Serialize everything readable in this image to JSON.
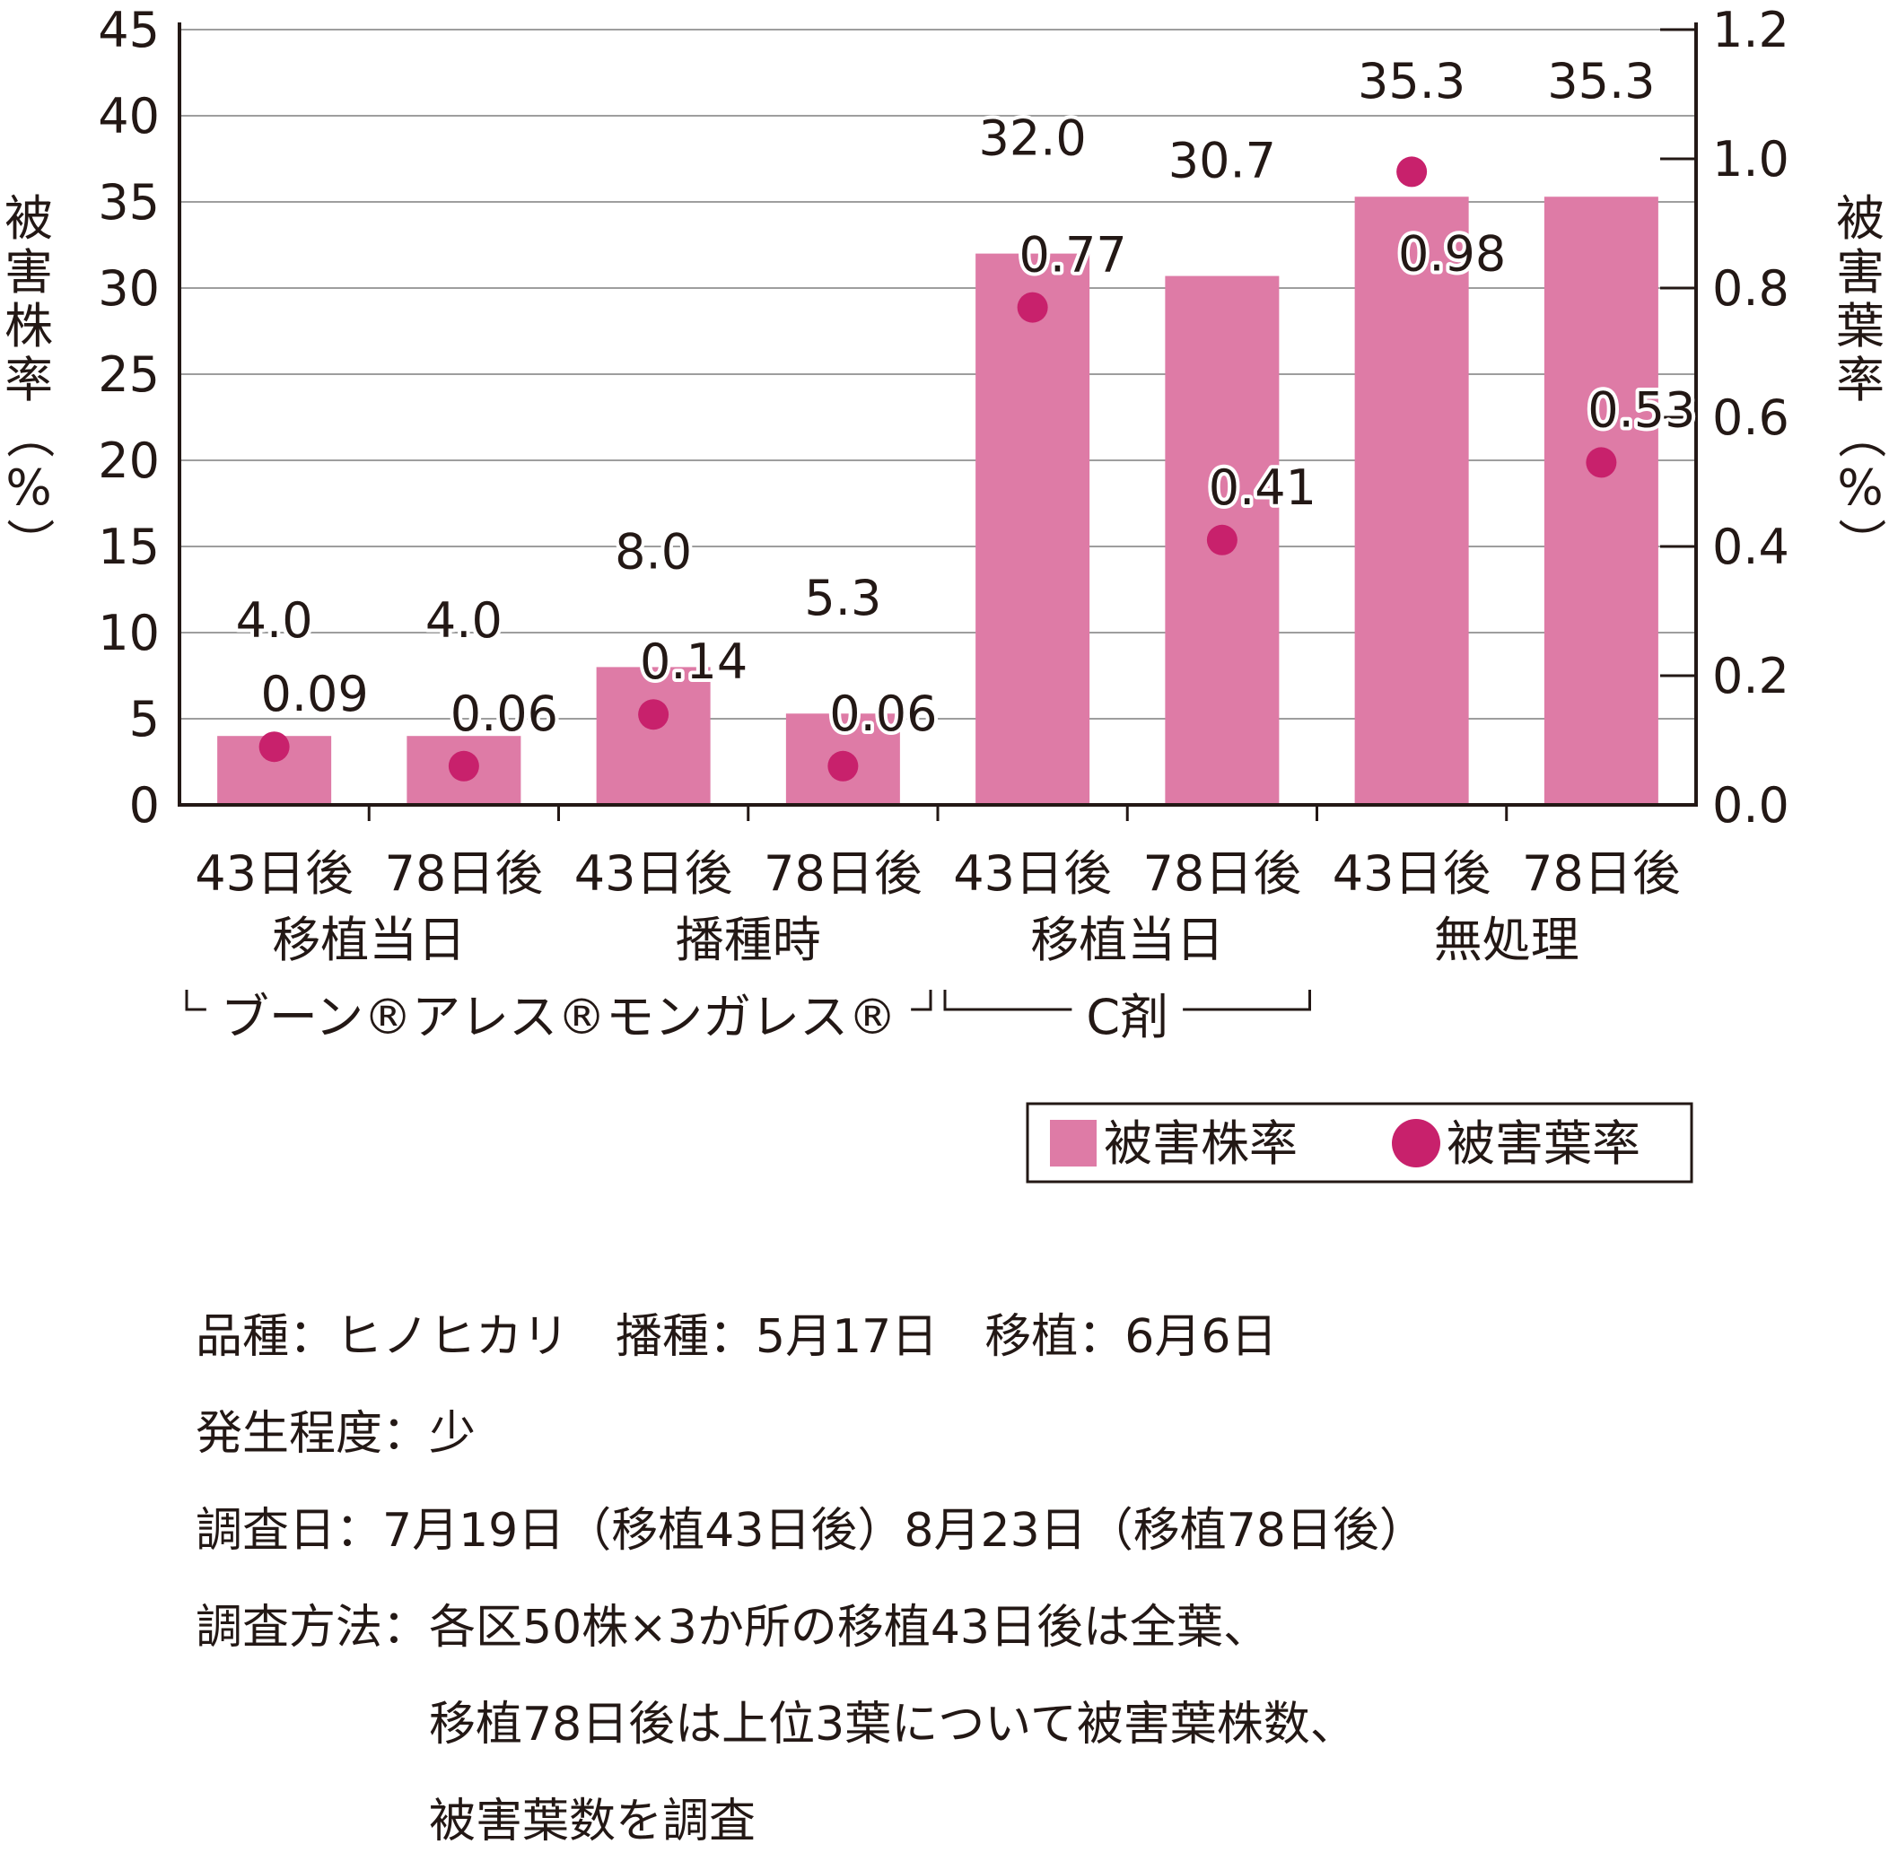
{
  "chart_data": {
    "type": "bar",
    "categories": [
      "43日後",
      "78日後",
      "43日後",
      "78日後",
      "43日後",
      "78日後",
      "43日後",
      "78日後"
    ],
    "groups": [
      {
        "label": "移植当日",
        "categories": [
          0,
          1
        ]
      },
      {
        "label": "播種時",
        "categories": [
          2,
          3
        ]
      },
      {
        "label": "移植当日",
        "categories": [
          4,
          5
        ]
      },
      {
        "label": "無処理",
        "categories": [
          6,
          7
        ]
      }
    ],
    "brackets": [
      {
        "label": "ブーン®アレス®モンガレス®",
        "groups": [
          0,
          1
        ]
      },
      {
        "label": "C剤",
        "groups": [
          2
        ]
      }
    ],
    "series": [
      {
        "name": "被害株率",
        "type": "bar",
        "axis": "left",
        "color": "#de7ba6",
        "values": [
          4.0,
          4.0,
          8.0,
          5.3,
          32.0,
          30.7,
          35.3,
          35.3
        ],
        "labels": [
          "4.0",
          "4.0",
          "8.0",
          "5.3",
          "32.0",
          "30.7",
          "35.3",
          "35.3"
        ]
      },
      {
        "name": "被害葉率",
        "type": "scatter",
        "axis": "right",
        "color": "#c8216c",
        "values": [
          0.09,
          0.06,
          0.14,
          0.06,
          0.77,
          0.41,
          0.98,
          0.53
        ],
        "labels": [
          "0.09",
          "0.06",
          "0.14",
          "0.06",
          "0.77",
          "0.41",
          "0.98",
          "0.53"
        ]
      }
    ],
    "y_left": {
      "label": "被害株率（%）",
      "range": [
        0,
        45
      ],
      "ticks": [
        "0",
        "5",
        "10",
        "15",
        "20",
        "25",
        "30",
        "35",
        "40",
        "45"
      ]
    },
    "y_right": {
      "label": "被害葉率（%）",
      "range": [
        0,
        1.2
      ],
      "ticks": [
        "0.0",
        "0.2",
        "0.4",
        "0.6",
        "0.8",
        "1.0",
        "1.2"
      ]
    },
    "grid": true,
    "legend": {
      "placement": "bottom-right",
      "entries": [
        "被害株率",
        "被害葉率"
      ]
    }
  },
  "notes": [
    {
      "key": "品種：",
      "lines": [
        "ヒノヒカリ　播種：5月17日　移植：6月6日"
      ]
    },
    {
      "key": "発生程度：",
      "lines": [
        "少"
      ]
    },
    {
      "key": "調査日：",
      "lines": [
        "7月19日（移植43日後）8月23日（移植78日後）"
      ]
    },
    {
      "key": "調査方法：",
      "lines": [
        "各区50株×3か所の移植43日後は全葉、",
        "移植78日後は上位3葉について被害葉株数、",
        "被害葉数を調査"
      ]
    }
  ]
}
